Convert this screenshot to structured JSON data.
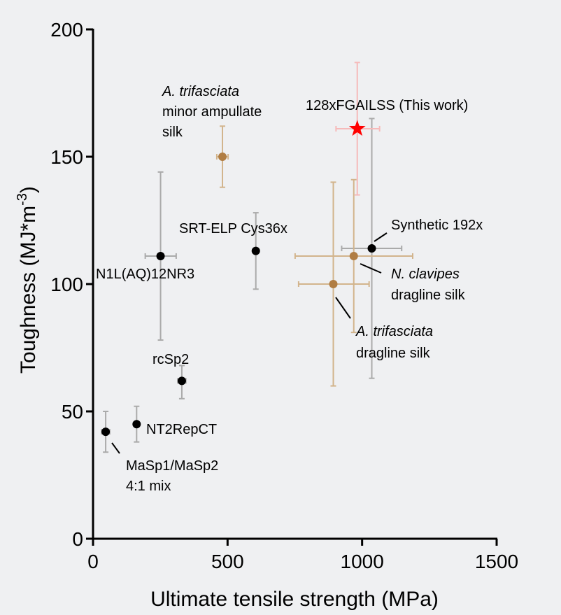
{
  "chart_data": {
    "type": "scatter",
    "xlabel": "Ultimate tensile strength (MPa)",
    "ylabel_main": "Toughness (MJ*m",
    "ylabel_sup": "-3",
    "ylabel_close": ")",
    "xlim": [
      0,
      1500
    ],
    "ylim": [
      0,
      200
    ],
    "xticks": [
      "0",
      "500",
      "1000",
      "1500"
    ],
    "yticks": [
      "0",
      "50",
      "100",
      "150",
      "200"
    ],
    "grid": false,
    "colors": {
      "black": "#000000",
      "black_err": "#aaaaaa",
      "brown": "#b07d43",
      "brown_err": "#d2b48c",
      "red": "#ff0000",
      "red_err": "#f6baba"
    },
    "points": [
      {
        "label": [
          {
            "text": "MaSp1/MaSp2",
            "italic": false
          },
          {
            "text": "4:1 mix",
            "italic": false
          }
        ],
        "x": 47,
        "y": 42,
        "x_err": [
          32,
          62
        ],
        "y_err": [
          34,
          50
        ],
        "color": "black",
        "marker": "circle"
      },
      {
        "label": [
          {
            "text": "NT2RepCT",
            "italic": false
          }
        ],
        "x": 162,
        "y": 45,
        "x_err": [
          160,
          164
        ],
        "y_err": [
          38,
          52
        ],
        "color": "black",
        "marker": "circle"
      },
      {
        "label": [
          {
            "text": "rcSp2",
            "italic": false
          }
        ],
        "x": 330,
        "y": 62,
        "x_err": [
          315,
          345
        ],
        "y_err": [
          55,
          68
        ],
        "color": "black",
        "marker": "circle"
      },
      {
        "label": [
          {
            "text": "N1L(AQ)12NR3",
            "italic": false
          }
        ],
        "x": 251,
        "y": 111,
        "x_err": [
          194,
          309
        ],
        "y_err": [
          78,
          144
        ],
        "color": "black",
        "marker": "circle"
      },
      {
        "label": [
          {
            "text": "SRT-ELP Cys36x",
            "italic": false
          }
        ],
        "x": 605,
        "y": 113,
        "x_err": [
          603,
          607
        ],
        "y_err": [
          98,
          128
        ],
        "color": "black",
        "marker": "circle"
      },
      {
        "label": [
          {
            "text": "A. trifasciata",
            "italic": true
          },
          {
            "text": "minor ampullate",
            "italic": false
          },
          {
            "text": "silk",
            "italic": false
          }
        ],
        "x": 481,
        "y": 150,
        "x_err": [
          460,
          502
        ],
        "y_err": [
          138,
          162
        ],
        "color": "brown",
        "marker": "circle"
      },
      {
        "label": [
          {
            "text": "Synthetic 192x",
            "italic": false
          }
        ],
        "x": 1036,
        "y": 114,
        "x_err": [
          924,
          1147
        ],
        "y_err": [
          63,
          165
        ],
        "color": "black",
        "marker": "circle"
      },
      {
        "label": [
          {
            "text": "N. clavipes",
            "italic": true
          },
          {
            "text": "dragline silk",
            "italic": false
          }
        ],
        "x": 969,
        "y": 111,
        "x_err": [
          751,
          1188
        ],
        "y_err": [
          81,
          141
        ],
        "color": "brown",
        "marker": "circle"
      },
      {
        "label": [
          {
            "text": "A. trifasciata",
            "italic": true
          },
          {
            "text": "dragline silk",
            "italic": false
          }
        ],
        "x": 893,
        "y": 100,
        "x_err": [
          764,
          1026
        ],
        "y_err": [
          60,
          140
        ],
        "color": "brown",
        "marker": "circle"
      },
      {
        "label": [
          {
            "text": "128xFGAILSS (This work)",
            "italic": false
          }
        ],
        "x": 982,
        "y": 161,
        "x_err": [
          903,
          1065
        ],
        "y_err": [
          135,
          187
        ],
        "color": "red",
        "marker": "star"
      }
    ]
  }
}
